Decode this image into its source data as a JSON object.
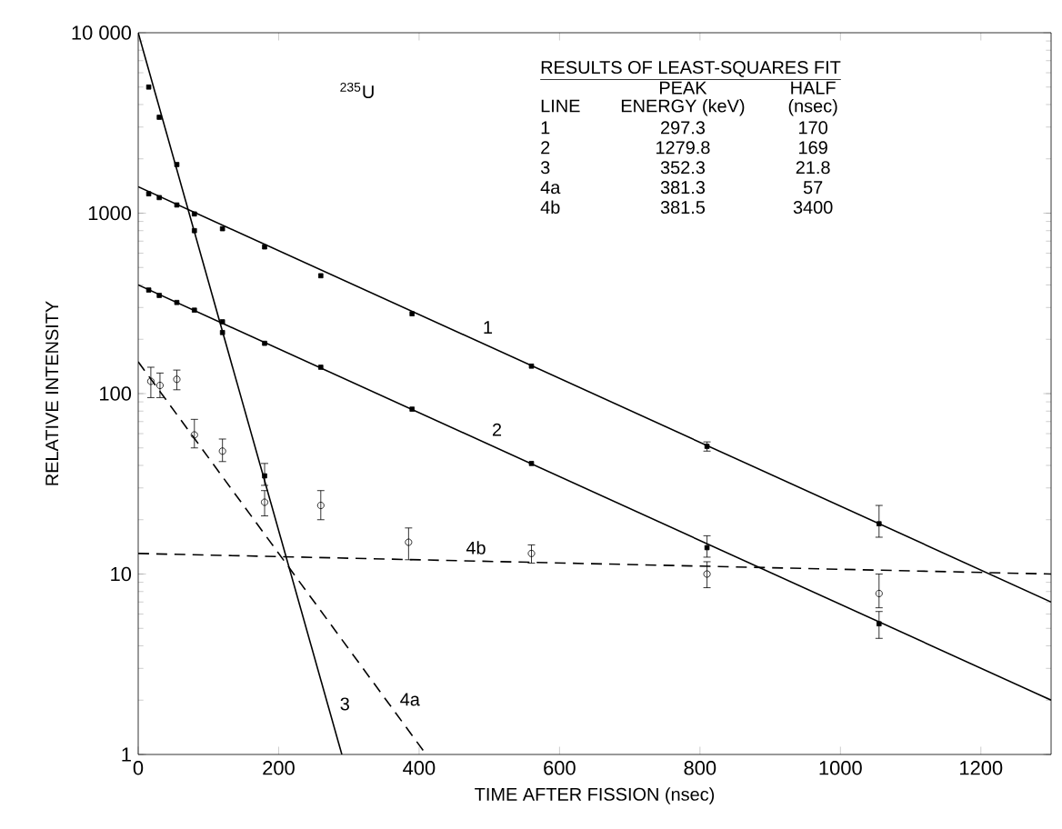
{
  "chart_data": {
    "type": "scatter",
    "xlabel": "TIME AFTER FISSION (nsec)",
    "ylabel": "RELATIVE INTENSITY",
    "xlim": [
      0,
      1300
    ],
    "xticks": [
      0,
      200,
      400,
      600,
      800,
      1000,
      1200
    ],
    "ylim": [
      1,
      10000
    ],
    "yticks": [
      1,
      10,
      100,
      1000,
      {
        "value": 10000,
        "label": "10 000"
      }
    ],
    "log": "y",
    "grid": false,
    "series": [
      {
        "type": "line",
        "name": "1",
        "line_style": "solid",
        "color": "#000000",
        "x": [
          0,
          1300
        ],
        "values": [
          1400,
          7
        ]
      },
      {
        "type": "line",
        "name": "2",
        "line_style": "solid",
        "color": "#000000",
        "x": [
          0,
          1300
        ],
        "values": [
          400,
          2
        ]
      },
      {
        "type": "line",
        "name": "3",
        "line_style": "solid",
        "color": "#000000",
        "x": [
          0,
          290
        ],
        "values": [
          10000,
          1
        ]
      },
      {
        "type": "line",
        "name": "4a",
        "line_style": "dashed",
        "color": "#000000",
        "x": [
          0,
          410
        ],
        "values": [
          150,
          1
        ]
      },
      {
        "type": "line",
        "name": "4b",
        "line_style": "dashed",
        "color": "#000000",
        "x": [
          0,
          1300
        ],
        "values": [
          13,
          10
        ]
      },
      {
        "marker": "square",
        "color": "#000000",
        "x": [
          15,
          30,
          55,
          80,
          120,
          180,
          260,
          390,
          560,
          810,
          1055
        ],
        "values": [
          1280,
          1220,
          1110,
          990,
          820,
          650,
          450,
          277,
          142,
          51,
          19
        ],
        "errors": [
          null,
          null,
          null,
          null,
          null,
          null,
          null,
          null,
          null,
          [
            48,
            54
          ],
          [
            16,
            24
          ]
        ]
      },
      {
        "marker": "square",
        "color": "#000000",
        "x": [
          15,
          30,
          55,
          80,
          120,
          180,
          260,
          390,
          560,
          810,
          1055
        ],
        "values": [
          375,
          350,
          320,
          290,
          250,
          190,
          140,
          82,
          41,
          14,
          5.3
        ],
        "errors": [
          null,
          null,
          null,
          null,
          null,
          null,
          null,
          null,
          null,
          [
            12.4,
            16.3
          ],
          [
            4.4,
            6.2
          ]
        ]
      },
      {
        "marker": "square",
        "color": "#000000",
        "x": [
          15,
          30,
          55,
          80,
          120,
          180
        ],
        "values": [
          5000,
          3400,
          1860,
          800,
          218,
          35
        ],
        "errors": [
          null,
          null,
          null,
          null,
          null,
          [
            31,
            41
          ]
        ]
      },
      {
        "marker": "circle",
        "color": "#000000",
        "x": [
          18,
          31,
          55,
          80,
          120,
          180,
          260,
          385,
          560,
          810,
          1055
        ],
        "values": [
          117,
          111,
          120,
          59,
          48,
          25,
          24,
          15,
          13,
          10,
          7.8
        ],
        "errors": [
          [
            95,
            140
          ],
          [
            95,
            130
          ],
          [
            105,
            135
          ],
          [
            50,
            72
          ],
          [
            42,
            56
          ],
          [
            21,
            29
          ],
          [
            20,
            29
          ],
          [
            12,
            18
          ],
          [
            11.5,
            14.5
          ],
          [
            8.4,
            11.7
          ],
          [
            6.5,
            10
          ]
        ]
      }
    ],
    "annotations": [
      "$^{235}$U",
      "RESULTS OF LEAST-SQUARES FIT",
      "PEAK",
      "HALF",
      "LINE",
      "ENERGY (keV)",
      "(nsec)",
      "1",
      "297.3",
      "170",
      "2",
      "1279.8",
      "169",
      "3",
      "352.3",
      "21.8",
      "4a",
      "381.3",
      "57",
      "4b",
      "381.5",
      "3400"
    ]
  }
}
